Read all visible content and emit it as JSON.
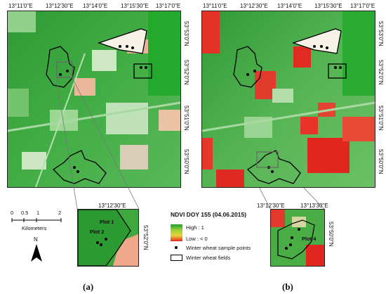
{
  "top_left_coords": {
    "x_ticks": [
      "13°11'0\"E",
      "13°12'30\"E",
      "13°14'0\"E",
      "13°15'30\"E",
      "13°17'0\"E"
    ],
    "y_ticks": [
      "53°53'0\"N",
      "53°52'0\"N",
      "53°51'0\"N",
      "53°50'0\"N"
    ]
  },
  "bottom_left_coords": {
    "x_ticks": [
      "13°12'30\"E"
    ],
    "y_ticks": [
      "53°52'0\"N"
    ]
  },
  "top_right_coords": {
    "x_ticks": [
      "13°11'0\"E",
      "13°12'30\"E",
      "13°14'0\"E",
      "13°15'30\"E",
      "13°17'0\"E"
    ],
    "y_ticks": [
      "53°53'0\"N",
      "53°52'0\"N",
      "53°51'0\"N",
      "53°50'0\"N"
    ]
  },
  "bottom_right_coords": {
    "x_ticks": [
      "13°12'30\"E",
      "13°13'30\"E"
    ],
    "y_ticks": [
      "53°50'0\"N"
    ]
  },
  "scale_bar": {
    "ticks": [
      "0",
      "0.5",
      "1",
      "2"
    ],
    "unit": "Kilometers"
  },
  "north_arrow": "N",
  "legend": {
    "title": "NDVI DOY 155 (04.06.2015)",
    "high_label": "High : 1",
    "low_label": "Low : < 0",
    "points_label": "Winter wheat sample points",
    "fields_label": "Winter wheat fields"
  },
  "plot_labels": {
    "plot1": "Plot 1",
    "plot2": "Plot 2",
    "plot4": "Plot 4"
  },
  "panel_labels": {
    "a": "(a)",
    "b": "(b)"
  },
  "colors": {
    "ndvi_high": "#17a02a",
    "ndvi_low": "#e8231c",
    "field_outline": "#000000",
    "inset_box": "#666666"
  }
}
